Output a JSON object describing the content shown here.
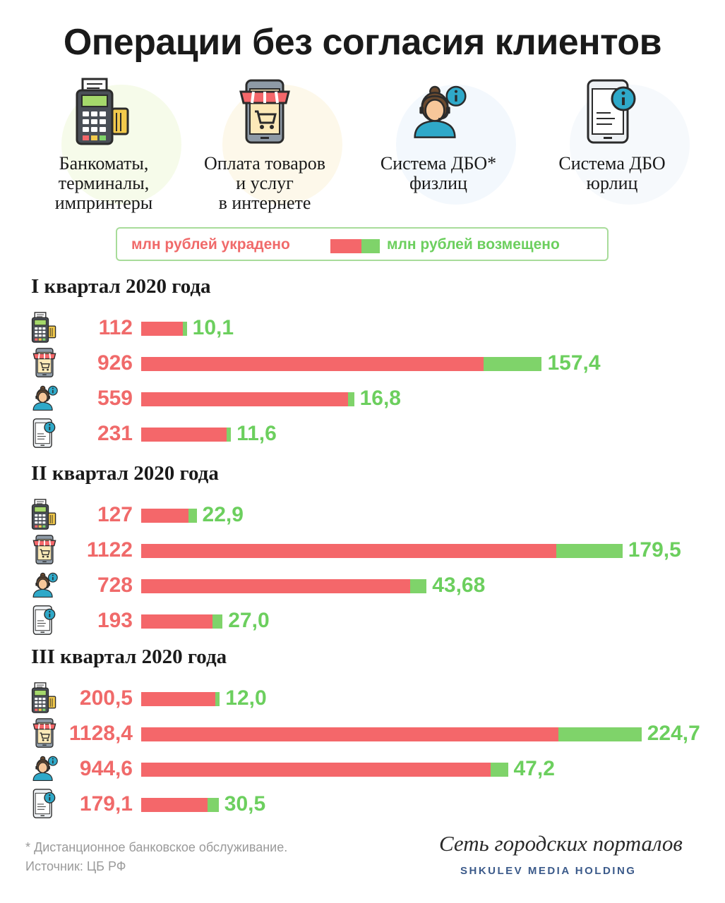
{
  "title": "Операции без согласия клиентов",
  "categories": [
    {
      "label": "Банкоматы,\nтерминалы,\nимпринтеры",
      "icon": "pos-terminal-icon",
      "halo": "#eef7d9"
    },
    {
      "label": "Оплата товаров\nи услуг\nв интернете",
      "icon": "online-shop-phone-icon",
      "halo": "#fbf3d8"
    },
    {
      "label": "Система ДБО*\nфизлиц",
      "icon": "support-operator-icon",
      "halo": "#eaf3fb"
    },
    {
      "label": "Система ДБО\nюрлиц",
      "icon": "mobile-info-icon",
      "halo": "#eef4fa"
    }
  ],
  "legend": {
    "stolen": "млн рублей украдено",
    "refunded": "млн рублей возмещено"
  },
  "colors": {
    "stolen": "#f4676a",
    "refunded": "#7fd36a",
    "stolen_text": "#f06a6a",
    "refunded_text": "#6ccf5e"
  },
  "chart_data": {
    "type": "bar",
    "orientation": "horizontal",
    "stacked": true,
    "series_names": [
      "млн рублей украдено",
      "млн рублей возмещено"
    ],
    "groups": [
      {
        "title": "I квартал 2020 года",
        "rows": [
          {
            "icon": "pos-terminal-icon",
            "stolen": 112,
            "stolen_label": "112",
            "refunded": 10.1,
            "refunded_label": "10,1"
          },
          {
            "icon": "online-shop-phone-icon",
            "stolen": 926,
            "stolen_label": "926",
            "refunded": 157.4,
            "refunded_label": "157,4"
          },
          {
            "icon": "support-operator-icon",
            "stolen": 559,
            "stolen_label": "559",
            "refunded": 16.8,
            "refunded_label": "16,8"
          },
          {
            "icon": "mobile-info-icon",
            "stolen": 231,
            "stolen_label": "231",
            "refunded": 11.6,
            "refunded_label": "11,6"
          }
        ]
      },
      {
        "title": "II квартал 2020 года",
        "rows": [
          {
            "icon": "pos-terminal-icon",
            "stolen": 127,
            "stolen_label": "127",
            "refunded": 22.9,
            "refunded_label": "22,9"
          },
          {
            "icon": "online-shop-phone-icon",
            "stolen": 1122,
            "stolen_label": "1122",
            "refunded": 179.5,
            "refunded_label": "179,5"
          },
          {
            "icon": "support-operator-icon",
            "stolen": 728,
            "stolen_label": "728",
            "refunded": 43.68,
            "refunded_label": "43,68"
          },
          {
            "icon": "mobile-info-icon",
            "stolen": 193,
            "stolen_label": "193",
            "refunded": 27.0,
            "refunded_label": "27,0"
          }
        ]
      },
      {
        "title": "III квартал 2020 года",
        "rows": [
          {
            "icon": "pos-terminal-icon",
            "stolen": 200.5,
            "stolen_label": "200,5",
            "refunded": 12.0,
            "refunded_label": "12,0"
          },
          {
            "icon": "online-shop-phone-icon",
            "stolen": 1128.4,
            "stolen_label": "1128,4",
            "refunded": 224.7,
            "refunded_label": "224,7"
          },
          {
            "icon": "support-operator-icon",
            "stolen": 944.6,
            "stolen_label": "944,6",
            "refunded": 47.2,
            "refunded_label": "47,2"
          },
          {
            "icon": "mobile-info-icon",
            "stolen": 179.1,
            "stolen_label": "179,1",
            "refunded": 30.5,
            "refunded_label": "30,5"
          }
        ]
      }
    ]
  },
  "footnote": {
    "line1": "* Дистанционное банковское обслуживание.",
    "line2": "Источник: ЦБ РФ"
  },
  "brand": {
    "name": "Сеть городских порталов",
    "holding": "SHKULEV MEDIA HOLDING"
  }
}
